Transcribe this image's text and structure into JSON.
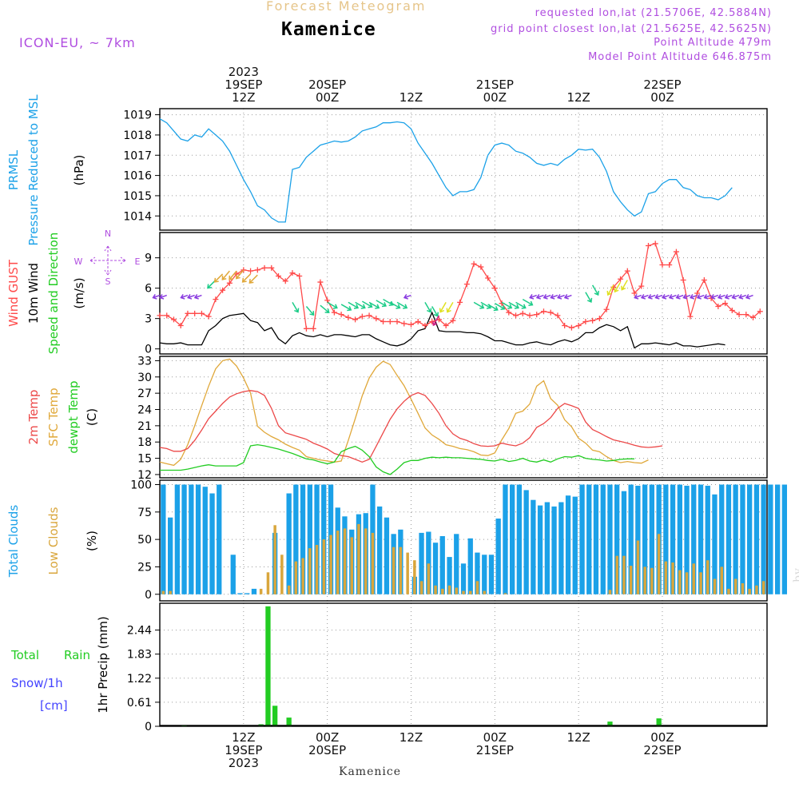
{
  "header": {
    "title": "Kamenice",
    "subtitle": "Forecast Meteogram",
    "model": "ICON-EU, ~ 7km",
    "requested": "requested lon,lat (21.5706E, 42.5884N)",
    "gridpoint": "grid point closest lon,lat (21.5625E, 42.5625N)",
    "point_altitude": "Point Altitude 479m",
    "model_altitude": "Model Point Altitude 646.875m",
    "credit": "by Angel",
    "footer": "Kamenice"
  },
  "colors": {
    "pressure": "#1ba1e8",
    "gust": "#ff4a4a",
    "wind10m": "#000000",
    "temp2m": "#ec4848",
    "sfc": "#e0a83a",
    "dew": "#22cc22",
    "total_clouds": "#1ba1e8",
    "low_clouds": "#d9a63c",
    "precip": "#22cc22",
    "purple": "#b04ee0",
    "snow": "#4444ff"
  },
  "time_axis": {
    "top_ticks": [
      {
        "t": 12,
        "lines": [
          "2023",
          "19SEP",
          "12Z"
        ]
      },
      {
        "t": 24,
        "lines": [
          "20SEP",
          "00Z"
        ]
      },
      {
        "t": 36,
        "lines": [
          "12Z"
        ]
      },
      {
        "t": 48,
        "lines": [
          "21SEP",
          "00Z"
        ]
      },
      {
        "t": 60,
        "lines": [
          "12Z"
        ]
      },
      {
        "t": 72,
        "lines": [
          "22SEP",
          "00Z"
        ]
      }
    ],
    "bottom_ticks": [
      {
        "t": 12,
        "lines": [
          "12Z",
          "19SEP",
          "2023"
        ]
      },
      {
        "t": 24,
        "lines": [
          "00Z",
          "20SEP"
        ]
      },
      {
        "t": 36,
        "lines": [
          "12Z"
        ]
      },
      {
        "t": 48,
        "lines": [
          "00Z",
          "21SEP"
        ]
      },
      {
        "t": 60,
        "lines": [
          "12Z"
        ]
      },
      {
        "t": 72,
        "lines": [
          "00Z",
          "22SEP"
        ]
      }
    ]
  },
  "panels": {
    "pressure": {
      "labels": [
        "PRMSL",
        "Pressure Reduced to MSL"
      ],
      "unit": "(hPa)",
      "ticks": [
        "1014",
        "1015",
        "1016",
        "1017",
        "1018",
        "1019"
      ]
    },
    "wind": {
      "labels": [
        "Wind GUST",
        "10m Wind",
        "Speed and Direction"
      ],
      "unit": "(m/s)",
      "compass": {
        "n": "N",
        "s": "S",
        "w": "W",
        "e": "E"
      },
      "ticks": [
        "0",
        "3",
        "6",
        "9"
      ]
    },
    "temp": {
      "labels": [
        "2m Temp",
        "SFC Temp",
        "dewpt Temp"
      ],
      "unit": "(C)",
      "ticks": [
        "12",
        "15",
        "18",
        "21",
        "24",
        "27",
        "30",
        "33"
      ]
    },
    "clouds": {
      "labels": [
        "Total Clouds",
        "Low Clouds"
      ],
      "unit": "(%)",
      "ticks": [
        "0",
        "25",
        "50",
        "75",
        "100"
      ]
    },
    "precip": {
      "labels": [
        "Total",
        "Rain",
        "Snow/1h",
        "[cm]"
      ],
      "axis_label": "1hr Precip (mm)",
      "ticks": [
        "0",
        "0.61",
        "1.22",
        "1.83",
        "2.44"
      ]
    }
  },
  "chart_data": [
    {
      "type": "line",
      "title": "PRMSL Pressure Reduced to MSL",
      "ylabel": "hPa",
      "ylim": [
        1013.3,
        1019.3
      ],
      "x_start_hour": 0,
      "x_step_hours": 1,
      "series": [
        {
          "name": "PRMSL",
          "values": [
            1018.8,
            1018.6,
            1018.2,
            1017.8,
            1017.7,
            1018.0,
            1017.9,
            1018.3,
            1018.0,
            1017.7,
            1017.2,
            1016.5,
            1015.8,
            1015.2,
            1014.5,
            1014.3,
            1013.9,
            1013.7,
            1013.7,
            1016.3,
            1016.4,
            1016.9,
            1017.2,
            1017.5,
            1017.6,
            1017.7,
            1017.65,
            1017.7,
            1017.9,
            1018.2,
            1018.3,
            1018.4,
            1018.6,
            1018.6,
            1018.65,
            1018.6,
            1018.3,
            1017.6,
            1017.1,
            1016.6,
            1016.0,
            1015.4,
            1015.0,
            1015.2,
            1015.2,
            1015.3,
            1015.9,
            1017.0,
            1017.5,
            1017.6,
            1017.5,
            1017.2,
            1017.1,
            1016.9,
            1016.6,
            1016.5,
            1016.6,
            1016.5,
            1016.8,
            1017.0,
            1017.3,
            1017.25,
            1017.3,
            1016.9,
            1016.2,
            1015.2,
            1014.7,
            1014.3,
            1014.0,
            1014.2,
            1015.1,
            1015.2,
            1015.6,
            1015.8,
            1015.8,
            1015.4,
            1015.3,
            1015.0,
            1014.9,
            1014.9,
            1014.8,
            1015.0,
            1015.4
          ]
        }
      ]
    },
    {
      "type": "line",
      "title": "Wind GUST / 10m Wind Speed and Direction",
      "ylabel": "m/s",
      "ylim": [
        -0.5,
        11.5
      ],
      "x_start_hour": 0,
      "x_step_hours": 1,
      "series": [
        {
          "name": "Wind GUST",
          "values": [
            3.3,
            3.3,
            2.9,
            2.3,
            3.5,
            3.5,
            3.5,
            3.2,
            4.9,
            5.8,
            6.5,
            7.4,
            7.8,
            7.7,
            7.8,
            8.0,
            8.0,
            7.2,
            6.7,
            7.5,
            7.2,
            2.0,
            2.0,
            6.6,
            4.8,
            3.6,
            3.4,
            3.1,
            2.9,
            3.2,
            3.3,
            3.0,
            2.7,
            2.7,
            2.7,
            2.5,
            2.4,
            2.7,
            2.3,
            2.7,
            2.9,
            2.3,
            2.8,
            4.6,
            6.4,
            8.4,
            8.1,
            7.0,
            6.0,
            4.5,
            3.6,
            3.3,
            3.5,
            3.3,
            3.4,
            3.7,
            3.6,
            3.3,
            2.3,
            2.1,
            2.3,
            2.7,
            2.8,
            3.0,
            3.9,
            6.1,
            6.9,
            7.7,
            5.5,
            6.2,
            10.2,
            10.4,
            8.3,
            8.3,
            9.6,
            6.8,
            3.2,
            5.5,
            6.8,
            5.0,
            4.2,
            4.5,
            3.8,
            3.4,
            3.4,
            3.1,
            3.7
          ]
        },
        {
          "name": "10m Wind",
          "values": [
            0.6,
            0.5,
            0.5,
            0.6,
            0.4,
            0.4,
            0.4,
            1.8,
            2.3,
            3.0,
            3.3,
            3.4,
            3.5,
            2.8,
            2.6,
            1.8,
            2.1,
            1.0,
            0.5,
            1.3,
            1.6,
            1.3,
            1.2,
            1.4,
            1.2,
            1.4,
            1.4,
            1.3,
            1.2,
            1.4,
            1.4,
            1.0,
            0.7,
            0.4,
            0.3,
            0.5,
            1.0,
            1.8,
            2.0,
            3.6,
            1.8,
            1.7,
            1.7,
            1.7,
            1.6,
            1.6,
            1.5,
            1.2,
            0.8,
            0.8,
            0.6,
            0.4,
            0.4,
            0.6,
            0.7,
            0.5,
            0.4,
            0.7,
            0.9,
            0.7,
            1.0,
            1.6,
            1.6,
            2.1,
            2.4,
            2.2,
            1.8,
            2.2,
            0.1,
            0.5,
            0.5,
            0.6,
            0.5,
            0.4,
            0.6,
            0.3,
            0.3,
            0.2,
            0.3,
            0.4,
            0.5,
            0.4
          ]
        }
      ]
    },
    {
      "type": "line",
      "title": "2m Temp / SFC Temp / dewpt Temp",
      "ylabel": "C",
      "ylim": [
        11.4,
        33.8
      ],
      "x_start_hour": 0,
      "x_step_hours": 1,
      "series": [
        {
          "name": "2m Temp",
          "values": [
            17.0,
            16.8,
            16.3,
            16.3,
            16.8,
            18.3,
            20.2,
            22.3,
            23.7,
            25.1,
            26.3,
            26.9,
            27.3,
            27.5,
            27.3,
            26.6,
            24.2,
            21.0,
            19.7,
            19.3,
            18.9,
            18.5,
            17.8,
            17.3,
            16.7,
            15.9,
            15.5,
            15.3,
            14.8,
            14.3,
            14.8,
            17.2,
            19.7,
            22.2,
            24.1,
            25.5,
            26.6,
            27.1,
            26.6,
            25.1,
            23.3,
            21.0,
            19.5,
            18.7,
            18.3,
            17.7,
            17.3,
            17.2,
            17.3,
            17.8,
            17.5,
            17.3,
            17.8,
            18.8,
            20.7,
            21.4,
            22.5,
            24.2,
            25.1,
            24.7,
            24.2,
            21.7,
            20.3,
            19.7,
            19.0,
            18.4,
            18.1,
            17.8,
            17.4,
            17.1,
            17.0,
            17.1,
            17.3
          ]
        },
        {
          "name": "SFC Temp",
          "values": [
            14.3,
            14.0,
            13.7,
            14.8,
            17.5,
            21.0,
            24.7,
            28.3,
            31.5,
            33.0,
            33.3,
            32.0,
            29.8,
            27.0,
            20.9,
            19.8,
            19.0,
            18.4,
            17.6,
            17.0,
            16.5,
            15.3,
            15.0,
            14.7,
            14.5,
            14.3,
            14.5,
            18.3,
            22.3,
            26.5,
            29.8,
            31.8,
            32.9,
            32.3,
            30.3,
            28.4,
            25.9,
            23.3,
            20.6,
            19.3,
            18.5,
            17.5,
            17.2,
            16.8,
            16.6,
            16.2,
            15.6,
            15.5,
            16.0,
            18.4,
            20.5,
            23.3,
            23.7,
            25.0,
            28.3,
            29.3,
            26.0,
            24.8,
            22.1,
            20.8,
            18.7,
            17.8,
            16.5,
            16.2,
            15.3,
            14.6,
            14.2,
            14.4,
            14.2,
            14.1,
            14.7
          ]
        },
        {
          "name": "dewpt Temp",
          "values": [
            12.8,
            12.8,
            12.8,
            12.8,
            13.0,
            13.3,
            13.6,
            13.8,
            13.6,
            13.6,
            13.6,
            13.6,
            14.2,
            17.3,
            17.5,
            17.3,
            17.0,
            16.7,
            16.3,
            15.9,
            15.4,
            14.9,
            14.7,
            14.3,
            14.0,
            14.3,
            16.2,
            16.8,
            17.2,
            16.5,
            15.3,
            13.4,
            12.5,
            12.0,
            13.0,
            14.2,
            14.6,
            14.6,
            15.0,
            15.2,
            15.1,
            15.2,
            15.1,
            15.1,
            15.0,
            14.9,
            14.8,
            14.6,
            14.5,
            14.8,
            14.4,
            14.6,
            15.0,
            14.5,
            14.3,
            14.7,
            14.3,
            14.9,
            15.3,
            15.2,
            15.5,
            15.0,
            14.8,
            14.7,
            14.5,
            14.6,
            14.8,
            14.9,
            14.9
          ]
        }
      ]
    },
    {
      "type": "bar",
      "title": "Total Clouds / Low Clouds",
      "ylabel": "%",
      "ylim": [
        -6,
        104
      ],
      "x_start_hour": 0,
      "x_step_hours": 1,
      "series": [
        {
          "name": "Total Clouds",
          "values": [
            100,
            70,
            100,
            100,
            100,
            100,
            98,
            92,
            100,
            0,
            36,
            1,
            1,
            5,
            0,
            0,
            56,
            0,
            92,
            100,
            100,
            100,
            100,
            100,
            100,
            79,
            71,
            59,
            73,
            74,
            100,
            80,
            70,
            55,
            59,
            0,
            16,
            56,
            57,
            47,
            53,
            34,
            55,
            28,
            51,
            38,
            36,
            36,
            69,
            100,
            100,
            100,
            95,
            86,
            81,
            84,
            80,
            84,
            90,
            89,
            100,
            100,
            100,
            100,
            100,
            100,
            94,
            100,
            99,
            100,
            100,
            100,
            100,
            100,
            100,
            99,
            100,
            100,
            99,
            91,
            100,
            100,
            100,
            100,
            100,
            100,
            100,
            100,
            100,
            100
          ]
        },
        {
          "name": "Low Clouds",
          "values": [
            3,
            3,
            0,
            0,
            0,
            0,
            0,
            0,
            0,
            0,
            0,
            0,
            0,
            0,
            5,
            20,
            63,
            36,
            8,
            30,
            33,
            42,
            45,
            50,
            54,
            58,
            60,
            52,
            64,
            60,
            56,
            0,
            0,
            43,
            43,
            38,
            31,
            12,
            28,
            8,
            5,
            8,
            6,
            3,
            3,
            12,
            3,
            0,
            0,
            1,
            0,
            0,
            0,
            0,
            0,
            0,
            0,
            0,
            0,
            0,
            0,
            0,
            0,
            0,
            4,
            35,
            35,
            26,
            49,
            25,
            24,
            55,
            30,
            29,
            22,
            20,
            28,
            20,
            31,
            14,
            25,
            5,
            14,
            10,
            5,
            8,
            12
          ]
        }
      ]
    },
    {
      "type": "bar",
      "title": "Total Rain / Snow 1hr Precip",
      "ylabel": "1hr Precip (mm)",
      "ylim": [
        0,
        3.12
      ],
      "x_start_hour": 0,
      "x_step_hours": 1,
      "series": [
        {
          "name": "Total Rain",
          "values": [
            0,
            0,
            0,
            0.01,
            0,
            0,
            0,
            0,
            0,
            0,
            0,
            0,
            0,
            0,
            0.05,
            3.04,
            0.52,
            0,
            0.22,
            0,
            0,
            0,
            0,
            0,
            0,
            0,
            0,
            0,
            0,
            0,
            0,
            0,
            0,
            0,
            0,
            0,
            0,
            0,
            0,
            0,
            0,
            0,
            0,
            0,
            0,
            0,
            0,
            0,
            0,
            0,
            0,
            0,
            0,
            0,
            0,
            0,
            0,
            0,
            0,
            0,
            0,
            0,
            0,
            0,
            0.12,
            0,
            0,
            0,
            0,
            0,
            0,
            0.2,
            0,
            0,
            0,
            0,
            0,
            0,
            0,
            0,
            0,
            0,
            0,
            0,
            0,
            0,
            0
          ]
        }
      ]
    }
  ]
}
